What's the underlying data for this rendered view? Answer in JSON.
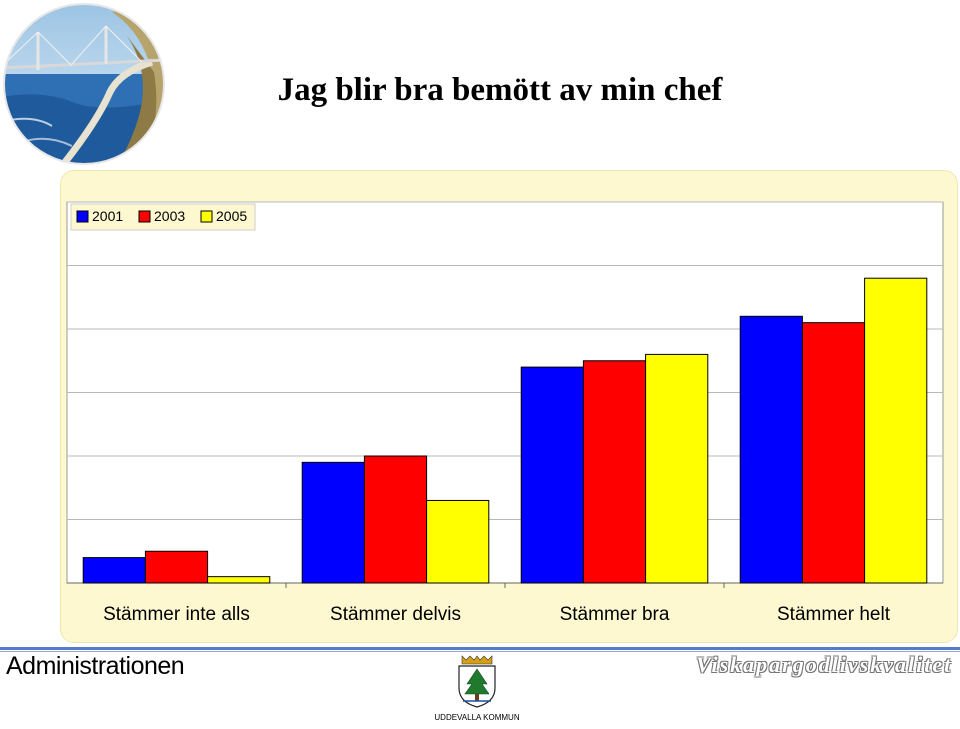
{
  "title": "Jag blir bra bemött av min chef",
  "footer": {
    "left_text": "Administrationen",
    "right_text": "Viskapargodlivskvalitet",
    "logo_caption": "UDDEVALLA KOMMUN"
  },
  "icons": {
    "header_image": "bridge-seascape-logo",
    "crest": "uddevalla-coat-of-arms"
  },
  "colors": {
    "series_2001": "#0000ff",
    "series_2003": "#ff0000",
    "series_2005": "#ffff00",
    "panel_background": "#fdf8d0",
    "plot_background": "#ffffff",
    "footer_line": "#5a78c8"
  },
  "chart_data": {
    "type": "bar",
    "title": "",
    "xlabel": "",
    "ylabel": "",
    "categories": [
      "Stämmer inte alls",
      "Stämmer delvis",
      "Stämmer bra",
      "Stämmer helt"
    ],
    "series": [
      {
        "name": "2001",
        "values": [
          4,
          19,
          34,
          42
        ]
      },
      {
        "name": "2003",
        "values": [
          5,
          20,
          35,
          41
        ]
      },
      {
        "name": "2005",
        "values": [
          1,
          13,
          36,
          48
        ]
      }
    ],
    "ylim": [
      0,
      60
    ],
    "yticks": [
      "0",
      "10",
      "20",
      "30",
      "40",
      "50",
      "60"
    ],
    "grid": true,
    "legend": "top-left"
  }
}
